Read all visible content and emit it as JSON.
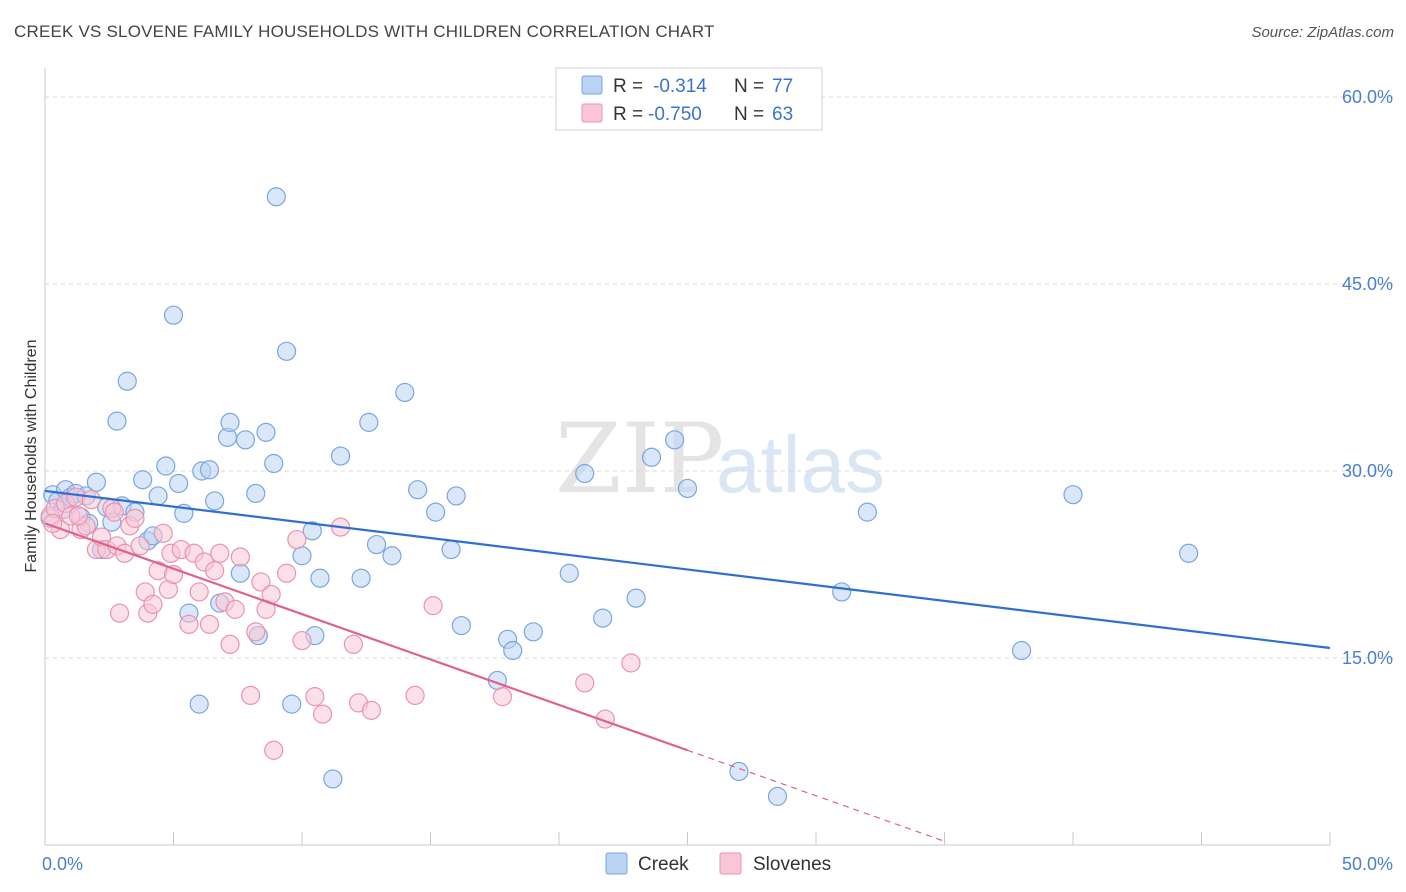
{
  "title": "CREEK VS SLOVENE FAMILY HOUSEHOLDS WITH CHILDREN CORRELATION CHART",
  "source": "Source: ZipAtlas.com",
  "watermark": {
    "part1": "ZIP",
    "part2": "atlas"
  },
  "colors": {
    "creek_fill": "#b9d3f3",
    "creek_stroke": "#7aa6e0",
    "creek_line": "#2f6fcf",
    "slovene_fill": "#f9c6d6",
    "slovene_stroke": "#ea93b1",
    "slovene_line": "#e0608e",
    "grid": "#d9d9d9",
    "axis_label": "#4a7fd0"
  },
  "legend": {
    "rows": [
      {
        "r_label": "R =",
        "r_value": "-0.314",
        "n_label": "N =",
        "n_value": "77"
      },
      {
        "r_label": "R =",
        "r_value": "-0.750",
        "n_label": "N =",
        "n_value": "63"
      }
    ]
  },
  "chart_data": {
    "type": "scatter",
    "title": "CREEK VS SLOVENE FAMILY HOUSEHOLDS WITH CHILDREN CORRELATION CHART",
    "xlabel": "",
    "ylabel": "Family Households with Children",
    "xlim": [
      0,
      50
    ],
    "ylim": [
      0,
      60
    ],
    "x_tick_labels": [
      "0.0%",
      "50.0%"
    ],
    "y_ticks": [
      15,
      30,
      45,
      60
    ],
    "y_tick_labels": [
      "15.0%",
      "30.0%",
      "45.0%",
      "60.0%"
    ],
    "series": [
      {
        "name": "Creek",
        "r": -0.314,
        "n": 77,
        "trend": {
          "x0": 0,
          "y0": 28.4,
          "x1": 50,
          "y1": 15.8
        },
        "points": [
          [
            0.3,
            28.1
          ],
          [
            0.5,
            27.6
          ],
          [
            0.7,
            26.9
          ],
          [
            0.8,
            28.5
          ],
          [
            1.0,
            27.9
          ],
          [
            1.2,
            28.2
          ],
          [
            1.4,
            26.3
          ],
          [
            1.6,
            28.0
          ],
          [
            1.7,
            25.8
          ],
          [
            2.0,
            29.1
          ],
          [
            2.2,
            23.7
          ],
          [
            2.4,
            27.1
          ],
          [
            2.6,
            25.9
          ],
          [
            2.8,
            34.0
          ],
          [
            3.0,
            27.2
          ],
          [
            3.2,
            37.2
          ],
          [
            3.5,
            26.7
          ],
          [
            3.8,
            29.3
          ],
          [
            4.0,
            24.4
          ],
          [
            4.2,
            24.8
          ],
          [
            4.4,
            28.0
          ],
          [
            4.7,
            30.4
          ],
          [
            5.0,
            42.5
          ],
          [
            5.2,
            29.0
          ],
          [
            5.4,
            26.6
          ],
          [
            5.6,
            18.6
          ],
          [
            6.0,
            11.3
          ],
          [
            6.1,
            30.0
          ],
          [
            6.4,
            30.1
          ],
          [
            6.6,
            27.6
          ],
          [
            6.8,
            19.4
          ],
          [
            7.1,
            32.7
          ],
          [
            7.2,
            33.9
          ],
          [
            7.6,
            21.8
          ],
          [
            7.8,
            32.5
          ],
          [
            8.2,
            28.2
          ],
          [
            8.3,
            16.8
          ],
          [
            8.6,
            33.1
          ],
          [
            8.9,
            30.6
          ],
          [
            9.0,
            52.0
          ],
          [
            9.4,
            39.6
          ],
          [
            9.6,
            11.3
          ],
          [
            10.0,
            23.2
          ],
          [
            10.4,
            25.2
          ],
          [
            10.5,
            16.8
          ],
          [
            10.7,
            21.4
          ],
          [
            11.2,
            5.3
          ],
          [
            11.5,
            31.2
          ],
          [
            12.3,
            21.4
          ],
          [
            12.6,
            33.9
          ],
          [
            12.9,
            24.1
          ],
          [
            13.5,
            23.2
          ],
          [
            14.0,
            36.3
          ],
          [
            14.5,
            28.5
          ],
          [
            15.2,
            26.7
          ],
          [
            15.8,
            23.7
          ],
          [
            16.0,
            28.0
          ],
          [
            16.2,
            17.6
          ],
          [
            17.6,
            13.2
          ],
          [
            18.0,
            16.5
          ],
          [
            18.2,
            15.6
          ],
          [
            19.0,
            17.1
          ],
          [
            20.4,
            21.8
          ],
          [
            21.0,
            29.8
          ],
          [
            21.7,
            18.2
          ],
          [
            23.0,
            19.8
          ],
          [
            23.6,
            31.1
          ],
          [
            24.5,
            32.5
          ],
          [
            25.0,
            28.6
          ],
          [
            27.0,
            5.9
          ],
          [
            28.5,
            3.9
          ],
          [
            31.0,
            20.3
          ],
          [
            32.0,
            26.7
          ],
          [
            38.0,
            15.6
          ],
          [
            40.0,
            28.1
          ],
          [
            44.5,
            23.4
          ],
          [
            0.2,
            26.2
          ]
        ]
      },
      {
        "name": "Slovenes",
        "r": -0.75,
        "n": 63,
        "trend": {
          "x0": 0,
          "y0": 25.8,
          "x1": 25,
          "y1": 7.6
        },
        "trend_extension": {
          "x0": 25,
          "y0": 7.6,
          "x1": 35,
          "y1": 0.3
        },
        "points": [
          [
            0.2,
            26.4
          ],
          [
            0.4,
            27.0
          ],
          [
            0.6,
            25.3
          ],
          [
            0.8,
            27.4
          ],
          [
            1.0,
            26.4
          ],
          [
            1.2,
            27.9
          ],
          [
            1.4,
            25.3
          ],
          [
            1.6,
            25.6
          ],
          [
            1.8,
            27.7
          ],
          [
            2.0,
            23.7
          ],
          [
            2.2,
            24.7
          ],
          [
            2.4,
            23.7
          ],
          [
            2.6,
            27.0
          ],
          [
            2.8,
            24.0
          ],
          [
            2.9,
            18.6
          ],
          [
            3.1,
            23.4
          ],
          [
            3.3,
            25.6
          ],
          [
            3.5,
            26.2
          ],
          [
            3.7,
            24.0
          ],
          [
            3.9,
            20.3
          ],
          [
            4.0,
            18.6
          ],
          [
            4.2,
            19.3
          ],
          [
            4.4,
            22.0
          ],
          [
            4.6,
            25.0
          ],
          [
            4.8,
            20.5
          ],
          [
            4.9,
            23.4
          ],
          [
            5.0,
            21.7
          ],
          [
            5.3,
            23.7
          ],
          [
            5.6,
            17.7
          ],
          [
            5.8,
            23.4
          ],
          [
            6.0,
            20.3
          ],
          [
            6.2,
            22.7
          ],
          [
            6.4,
            17.7
          ],
          [
            6.6,
            22.0
          ],
          [
            6.8,
            23.4
          ],
          [
            7.0,
            19.5
          ],
          [
            7.2,
            16.1
          ],
          [
            7.4,
            18.9
          ],
          [
            7.6,
            23.1
          ],
          [
            8.0,
            12.0
          ],
          [
            8.2,
            17.1
          ],
          [
            8.4,
            21.1
          ],
          [
            8.6,
            18.9
          ],
          [
            8.8,
            20.1
          ],
          [
            8.9,
            7.6
          ],
          [
            9.4,
            21.8
          ],
          [
            9.8,
            24.5
          ],
          [
            10.0,
            16.4
          ],
          [
            10.5,
            11.9
          ],
          [
            10.8,
            10.5
          ],
          [
            11.5,
            25.5
          ],
          [
            12.0,
            16.1
          ],
          [
            12.2,
            11.4
          ],
          [
            12.7,
            10.8
          ],
          [
            14.4,
            12.0
          ],
          [
            15.1,
            19.2
          ],
          [
            17.8,
            11.9
          ],
          [
            21.0,
            13.0
          ],
          [
            21.8,
            10.1
          ],
          [
            22.8,
            14.6
          ],
          [
            1.3,
            26.4
          ],
          [
            2.7,
            26.7
          ],
          [
            0.3,
            25.8
          ]
        ]
      }
    ],
    "legend_position": "top-center",
    "grid": true
  }
}
